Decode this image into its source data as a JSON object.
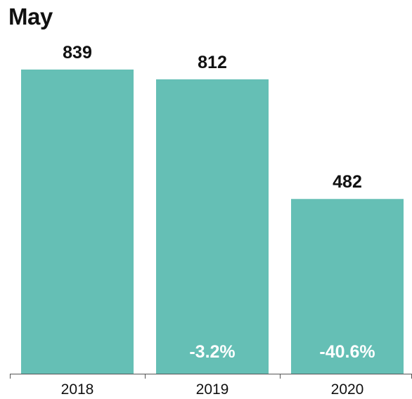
{
  "chart_data": {
    "type": "bar",
    "title": "May",
    "categories": [
      "2018",
      "2019",
      "2020"
    ],
    "values": [
      839,
      812,
      482
    ],
    "value_labels": [
      "839",
      "812",
      "482"
    ],
    "change_labels": [
      "",
      "-3.2%",
      "-40.6%"
    ],
    "xlabel": "",
    "ylabel": "",
    "ylim": [
      0,
      839
    ],
    "grid": false,
    "legend": "none",
    "colors": {
      "bar": "#65bfb5",
      "value_label": "#111111",
      "change_label": "#ffffff",
      "axis": "#555555",
      "tick_label": "#111111"
    }
  }
}
